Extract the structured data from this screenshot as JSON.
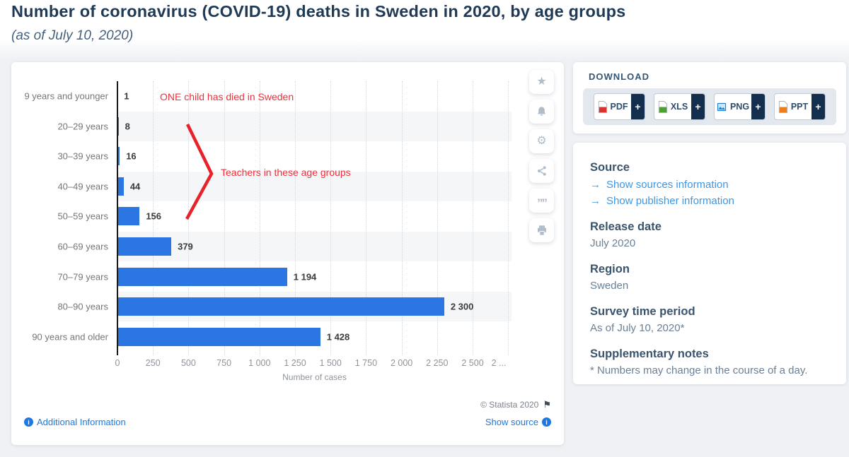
{
  "header": {
    "title": "Number of coronavirus (COVID-19) deaths in Sweden in 2020, by age groups",
    "subtitle": "(as of July 10, 2020)"
  },
  "chart_data": {
    "type": "bar",
    "orientation": "horizontal",
    "title": "Number of coronavirus (COVID-19) deaths in Sweden in 2020, by age groups (as of July 10, 2020)",
    "categories": [
      "9 years and younger",
      "20–29 years",
      "30–39 years",
      "40–49 years",
      "50–59 years",
      "60–69 years",
      "70–79 years",
      "80–90 years",
      "90 years and older"
    ],
    "values": [
      1,
      8,
      16,
      44,
      156,
      379,
      1194,
      2300,
      1428
    ],
    "value_labels": [
      "1",
      "8",
      "16",
      "44",
      "156",
      "379",
      "1 194",
      "2 300",
      "1 428"
    ],
    "xlabel": "Number of cases",
    "ylabel": "",
    "xlim": [
      0,
      2775
    ],
    "x_tick_values": [
      0,
      250,
      500,
      750,
      1000,
      1250,
      1500,
      1750,
      2000,
      2250,
      2500,
      2750
    ],
    "x_tick_labels": [
      "0",
      "250",
      "500",
      "750",
      "1 000",
      "1 250",
      "1 500",
      "1 750",
      "2 000",
      "2 250",
      "2 500",
      "2 ..."
    ],
    "grid": "vertical-dotted",
    "legend": "none",
    "bar_color": "#2b76e2",
    "row_stripe_color": "#f5f6f8",
    "annotations": [
      {
        "text": "ONE child has died in Sweden",
        "color": "#ef2f3c"
      },
      {
        "text": "Teachers in these age groups",
        "color": "#ef2f3c",
        "shape": "red-chevron-pointing-right",
        "shape_color": "#e8212b"
      }
    ]
  },
  "chart_footer": {
    "copyright": "© Statista 2020",
    "flag_icon": "report-flag",
    "additional_information": "Additional Information",
    "show_source": "Show source"
  },
  "toolbar_icons": [
    "star",
    "bell",
    "gear",
    "share",
    "quote",
    "printer"
  ],
  "download": {
    "heading": "DOWNLOAD",
    "plus": "+",
    "buttons": [
      {
        "label": "PDF",
        "icon": "pdf-file-icon",
        "icon_color": "#d9342b"
      },
      {
        "label": "XLS",
        "icon": "xls-file-icon",
        "icon_color": "#4ca132"
      },
      {
        "label": "PNG",
        "icon": "png-image-icon",
        "icon_color": "#1e7fd0"
      },
      {
        "label": "PPT",
        "icon": "ppt-file-icon",
        "icon_color": "#ef7d18"
      }
    ]
  },
  "info": {
    "source_heading": "Source",
    "source_links": [
      "Show sources information",
      "Show publisher information"
    ],
    "release_heading": "Release date",
    "release_value": "July 2020",
    "region_heading": "Region",
    "region_value": "Sweden",
    "survey_heading": "Survey time period",
    "survey_value": "As of July 10, 2020*",
    "notes_heading": "Supplementary notes",
    "notes_value": "* Numbers may change in the course of a day."
  }
}
